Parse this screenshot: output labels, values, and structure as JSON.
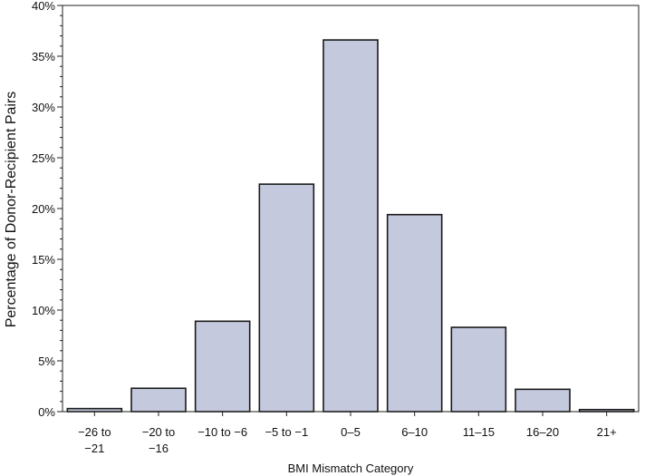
{
  "chart_data": {
    "type": "bar",
    "title": "",
    "xlabel": "BMI Mismatch Category",
    "ylabel": "Percentage of Donor-Recipient Pairs",
    "categories": [
      [
        "−26 to",
        "−21"
      ],
      [
        "−20 to",
        "−16"
      ],
      [
        "−10 to −6"
      ],
      [
        "−5 to −1"
      ],
      [
        "0–5"
      ],
      [
        "6–10"
      ],
      [
        "11–15"
      ],
      [
        "16–20"
      ],
      [
        "21+"
      ]
    ],
    "values": [
      0.3,
      2.3,
      8.9,
      22.4,
      36.6,
      19.4,
      8.3,
      2.2,
      0.2
    ],
    "ylim": [
      0,
      40
    ],
    "yticks": [
      0,
      5,
      10,
      15,
      20,
      25,
      30,
      35,
      40
    ],
    "ytick_suffix": "%",
    "grid": false,
    "colors": {
      "bar_fill": "#c4c9de",
      "bar_stroke": "#1a1a1a",
      "axis": "#222222"
    }
  }
}
